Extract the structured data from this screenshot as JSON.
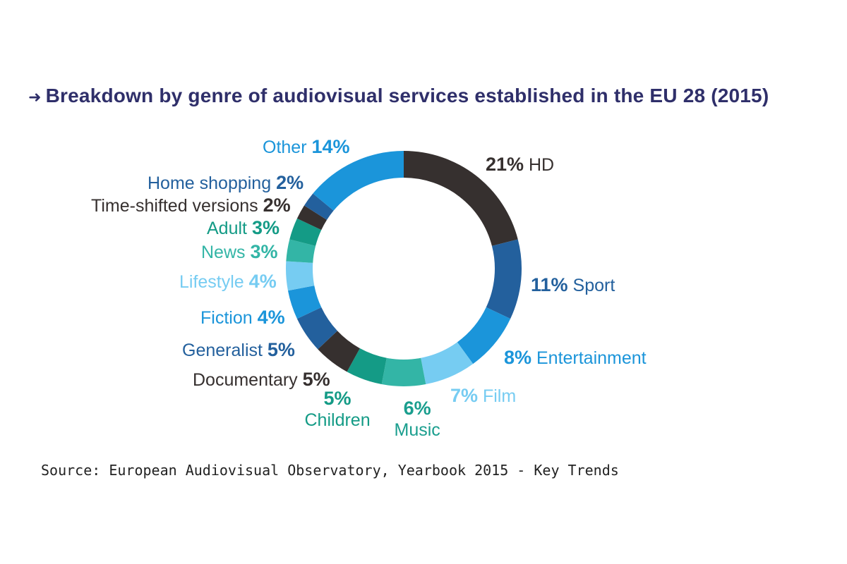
{
  "chart_data": {
    "type": "pie",
    "variant": "donut",
    "title": "Breakdown by genre of audiovisual services established in the EU 28 (2015)",
    "title_prefix_icon": "arrow-right-icon",
    "value_suffix": "%",
    "slices": [
      {
        "label": "HD",
        "value": 21,
        "pct_text": "21%",
        "color": "#36302f",
        "label_color": "#36302f",
        "order": "pct-first"
      },
      {
        "label": "Sport",
        "value": 11,
        "pct_text": "11%",
        "color": "#23609d",
        "label_color": "#23609d",
        "order": "pct-first"
      },
      {
        "label": "Entertainment",
        "value": 8,
        "pct_text": "8%",
        "color": "#1b95da",
        "label_color": "#1b95da",
        "order": "pct-first"
      },
      {
        "label": "Film",
        "value": 7,
        "pct_text": "7%",
        "color": "#76ccf2",
        "label_color": "#76ccf2",
        "order": "pct-first"
      },
      {
        "label": "Music",
        "value": 6,
        "pct_text": "6%",
        "color": "#33b5a6",
        "label_color": "#1a9e8e",
        "order": "pct-above"
      },
      {
        "label": "Children",
        "value": 5,
        "pct_text": "5%",
        "color": "#149b86",
        "label_color": "#149b86",
        "order": "pct-above"
      },
      {
        "label": "Documentary",
        "value": 5,
        "pct_text": "5%",
        "color": "#36302f",
        "label_color": "#36302f",
        "order": "label-first"
      },
      {
        "label": "Generalist",
        "value": 5,
        "pct_text": "5%",
        "color": "#23609d",
        "label_color": "#23609d",
        "order": "label-first"
      },
      {
        "label": "Fiction",
        "value": 4,
        "pct_text": "4%",
        "color": "#1b95da",
        "label_color": "#1b95da",
        "order": "label-first"
      },
      {
        "label": "Lifestyle",
        "value": 4,
        "pct_text": "4%",
        "color": "#76ccf2",
        "label_color": "#76ccf2",
        "order": "label-first"
      },
      {
        "label": "News",
        "value": 3,
        "pct_text": "3%",
        "color": "#33b5a6",
        "label_color": "#33b5a6",
        "order": "label-first"
      },
      {
        "label": "Adult",
        "value": 3,
        "pct_text": "3%",
        "color": "#149b86",
        "label_color": "#149b86",
        "order": "label-first"
      },
      {
        "label": "Time-shifted versions",
        "value": 2,
        "pct_text": "2%",
        "color": "#36302f",
        "label_color": "#36302f",
        "order": "label-first"
      },
      {
        "label": "Home shopping",
        "value": 2,
        "pct_text": "2%",
        "color": "#23609d",
        "label_color": "#23609d",
        "order": "label-first"
      },
      {
        "label": "Other",
        "value": 14,
        "pct_text": "14%",
        "color": "#1b95da",
        "label_color": "#1b95da",
        "order": "label-first"
      }
    ]
  },
  "source": "Source: European Audiovisual Observatory, Yearbook 2015 - Key Trends"
}
